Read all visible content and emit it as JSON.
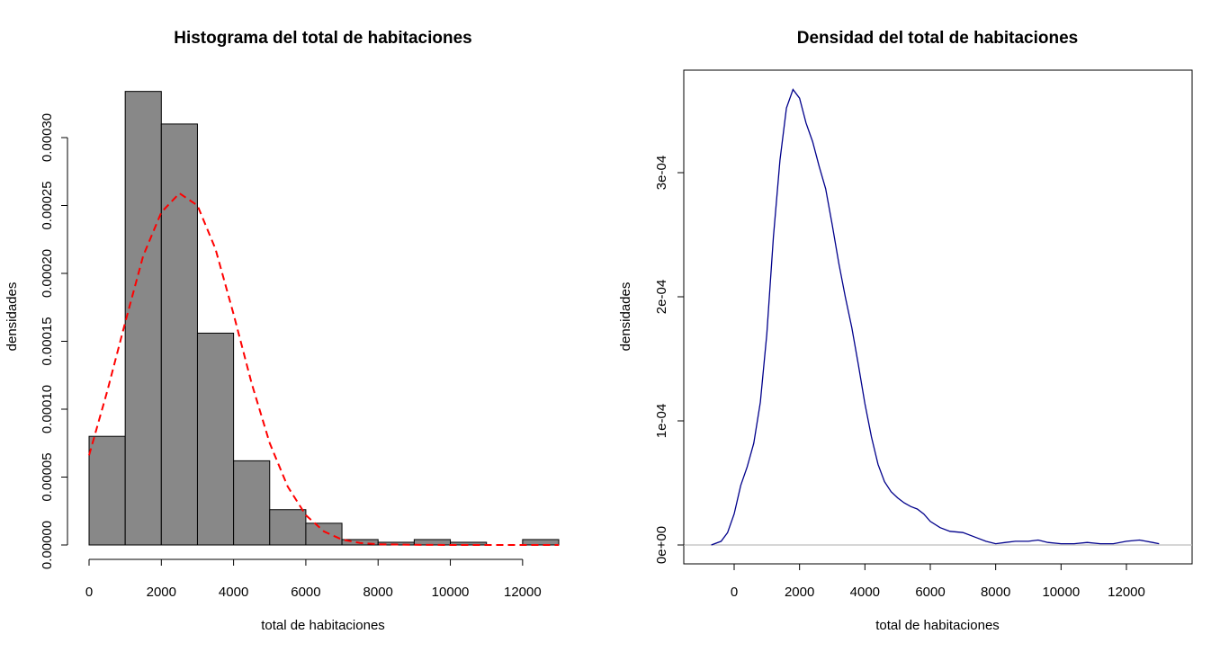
{
  "chart_data": [
    {
      "type": "bar",
      "title": "Histograma del total de habitaciones",
      "xlabel": "total de habitaciones",
      "ylabel": "densidades",
      "xlim": [
        0,
        13000
      ],
      "ylim": [
        0,
        0.00033
      ],
      "x_ticks": [
        0,
        2000,
        4000,
        6000,
        8000,
        10000,
        12000
      ],
      "x_tick_labels": [
        "0",
        "2000",
        "4000",
        "6000",
        "8000",
        "10000",
        "12000"
      ],
      "y_ticks": [
        0,
        5e-05,
        0.0001,
        0.00015,
        0.0002,
        0.00025,
        0.0003
      ],
      "y_tick_labels": [
        "0.00000",
        "0.00005",
        "0.00010",
        "0.00015",
        "0.00020",
        "0.00025",
        "0.00030"
      ],
      "bar_color": "#888888",
      "bins": [
        {
          "start": 0,
          "end": 1000,
          "density": 8e-05
        },
        {
          "start": 1000,
          "end": 2000,
          "density": 0.000334
        },
        {
          "start": 2000,
          "end": 3000,
          "density": 0.00031
        },
        {
          "start": 3000,
          "end": 4000,
          "density": 0.000156
        },
        {
          "start": 4000,
          "end": 5000,
          "density": 6.2e-05
        },
        {
          "start": 5000,
          "end": 6000,
          "density": 2.6e-05
        },
        {
          "start": 6000,
          "end": 7000,
          "density": 1.6e-05
        },
        {
          "start": 7000,
          "end": 8000,
          "density": 4e-06
        },
        {
          "start": 8000,
          "end": 9000,
          "density": 2e-06
        },
        {
          "start": 9000,
          "end": 10000,
          "density": 4e-06
        },
        {
          "start": 10000,
          "end": 11000,
          "density": 2e-06
        },
        {
          "start": 11000,
          "end": 12000,
          "density": 0.0
        },
        {
          "start": 12000,
          "end": 13000,
          "density": 4e-06
        }
      ],
      "overlay_curve": {
        "style": "dashed",
        "color": "#ff0000",
        "x": [
          0,
          500,
          1000,
          1500,
          2000,
          2500,
          3000,
          3500,
          4000,
          4500,
          5000,
          5500,
          6000,
          6500,
          7000,
          7500,
          8000,
          9000,
          10000,
          11000,
          12000,
          13000
        ],
        "y": [
          6.6e-05,
          0.000113,
          0.000164,
          0.000213,
          0.000245,
          0.000259,
          0.00025,
          0.000218,
          0.00017,
          0.000119,
          7.5e-05,
          4.3e-05,
          2.2e-05,
          1e-05,
          4e-06,
          1.5e-06,
          5e-07,
          1e-07,
          0.0,
          0.0,
          0.0,
          0.0
        ]
      }
    },
    {
      "type": "line",
      "title": "Densidad del total de habitaciones",
      "xlabel": "total de habitaciones",
      "ylabel": "densidades",
      "xlim": [
        -1500,
        14000
      ],
      "ylim": [
        -1.5e-05,
        0.00038
      ],
      "x_ticks": [
        0,
        2000,
        4000,
        6000,
        8000,
        10000,
        12000
      ],
      "x_tick_labels": [
        "0",
        "2000",
        "4000",
        "6000",
        "8000",
        "10000",
        "12000"
      ],
      "y_ticks": [
        0,
        0.0001,
        0.0002,
        0.0003
      ],
      "y_tick_labels": [
        "0e+00",
        "1e-04",
        "2e-04",
        "3e-04"
      ],
      "baseline_color": "#bebebe",
      "series": [
        {
          "color": "#00008b",
          "x": [
            -700,
            -400,
            -200,
            0,
            200,
            400,
            600,
            800,
            1000,
            1200,
            1400,
            1600,
            1800,
            2000,
            2200,
            2400,
            2600,
            2800,
            3000,
            3200,
            3400,
            3600,
            3800,
            4000,
            4200,
            4400,
            4600,
            4800,
            5000,
            5200,
            5400,
            5600,
            5800,
            6000,
            6300,
            6600,
            7000,
            7400,
            7700,
            8000,
            8300,
            8600,
            9000,
            9300,
            9600,
            10000,
            10400,
            10800,
            11200,
            11600,
            12000,
            12400,
            12800,
            13000
          ],
          "y": [
            0.0,
            3e-06,
            1e-05,
            2.5e-05,
            4.8e-05,
            6.3e-05,
            8.2e-05,
            0.000115,
            0.00017,
            0.000248,
            0.00031,
            0.000352,
            0.000367,
            0.00036,
            0.00034,
            0.000325,
            0.000305,
            0.000287,
            0.000258,
            0.000227,
            0.0002,
            0.000175,
            0.000145,
            0.000114,
            8.7e-05,
            6.5e-05,
            5.1e-05,
            4.3e-05,
            3.8e-05,
            3.4e-05,
            3.1e-05,
            2.9e-05,
            2.5e-05,
            1.9e-05,
            1.4e-05,
            1.1e-05,
            1e-05,
            6e-06,
            3e-06,
            1e-06,
            2e-06,
            3e-06,
            3e-06,
            4e-06,
            2e-06,
            1e-06,
            1e-06,
            2e-06,
            1e-06,
            1e-06,
            3e-06,
            4e-06,
            2e-06,
            1e-06
          ]
        }
      ]
    }
  ]
}
